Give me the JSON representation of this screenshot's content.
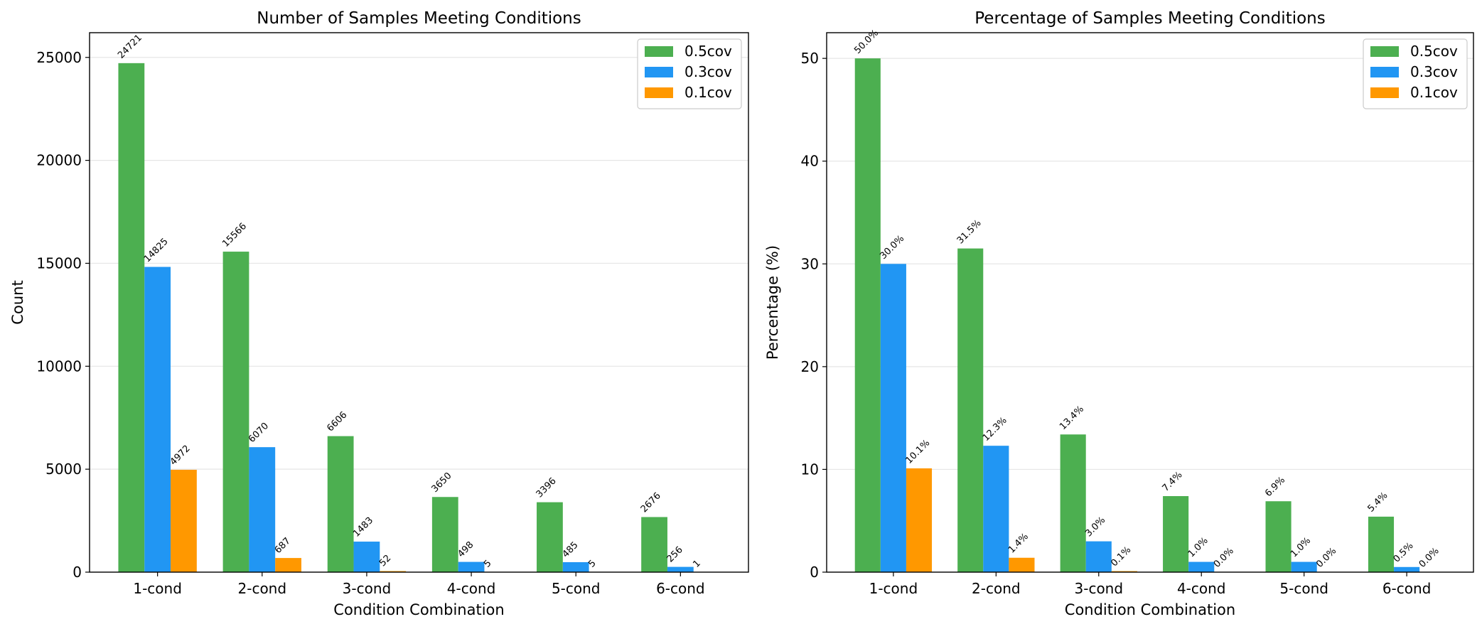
{
  "chart_data": [
    {
      "type": "bar",
      "title": "Number of Samples Meeting Conditions",
      "xlabel": "Condition Combination",
      "ylabel": "Count",
      "categories": [
        "1-cond",
        "2-cond",
        "3-cond",
        "4-cond",
        "5-cond",
        "6-cond"
      ],
      "ylim": [
        0,
        26200
      ],
      "yticks": [
        0,
        5000,
        10000,
        15000,
        20000,
        25000
      ],
      "ytick_labels": [
        "0",
        "5000",
        "10000",
        "15000",
        "20000",
        "25000"
      ],
      "grid": true,
      "legend_position": "top-right",
      "series": [
        {
          "name": "0.5cov",
          "color": "#4caf50",
          "values": [
            24721,
            15566,
            6606,
            3650,
            3396,
            2676
          ],
          "labels": [
            "24721",
            "15566",
            "6606",
            "3650",
            "3396",
            "2676"
          ]
        },
        {
          "name": "0.3cov",
          "color": "#2196f3",
          "values": [
            14825,
            6070,
            1483,
            498,
            485,
            256
          ],
          "labels": [
            "14825",
            "6070",
            "1483",
            "498",
            "485",
            "256"
          ]
        },
        {
          "name": "0.1cov",
          "color": "#ff9800",
          "values": [
            4972,
            687,
            52,
            5,
            5,
            1
          ],
          "labels": [
            "4972",
            "687",
            "52",
            "5",
            "5",
            "1"
          ]
        }
      ]
    },
    {
      "type": "bar",
      "title": "Percentage of Samples Meeting Conditions",
      "xlabel": "Condition Combination",
      "ylabel": "Percentage (%)",
      "categories": [
        "1-cond",
        "2-cond",
        "3-cond",
        "4-cond",
        "5-cond",
        "6-cond"
      ],
      "ylim": [
        0,
        52.5
      ],
      "yticks": [
        0,
        10,
        20,
        30,
        40,
        50
      ],
      "ytick_labels": [
        "0",
        "10",
        "20",
        "30",
        "40",
        "50"
      ],
      "grid": true,
      "legend_position": "top-right",
      "series": [
        {
          "name": "0.5cov",
          "color": "#4caf50",
          "values": [
            50.0,
            31.5,
            13.4,
            7.4,
            6.9,
            5.4
          ],
          "labels": [
            "50.0%",
            "31.5%",
            "13.4%",
            "7.4%",
            "6.9%",
            "5.4%"
          ]
        },
        {
          "name": "0.3cov",
          "color": "#2196f3",
          "values": [
            30.0,
            12.3,
            3.0,
            1.0,
            1.0,
            0.5
          ],
          "labels": [
            "30.0%",
            "12.3%",
            "3.0%",
            "1.0%",
            "1.0%",
            "0.5%"
          ]
        },
        {
          "name": "0.1cov",
          "color": "#ff9800",
          "values": [
            10.1,
            1.4,
            0.1,
            0.0,
            0.0,
            0.0
          ],
          "labels": [
            "10.1%",
            "1.4%",
            "0.1%",
            "0.0%",
            "0.0%",
            "0.0%"
          ]
        }
      ]
    }
  ]
}
